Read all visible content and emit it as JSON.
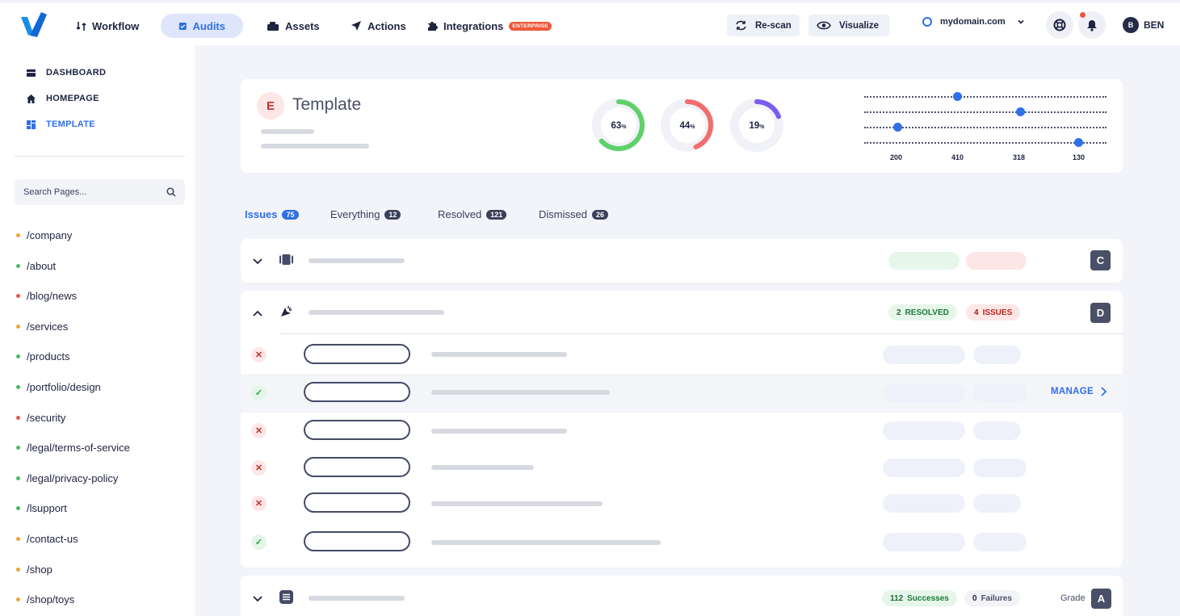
{
  "nav": {
    "items": [
      {
        "label": "Workflow",
        "icon": "workflow-icon"
      },
      {
        "label": "Audits",
        "icon": "audits-icon",
        "active": true
      },
      {
        "label": "Assets",
        "icon": "assets-icon"
      },
      {
        "label": "Actions",
        "icon": "send-icon"
      },
      {
        "label": "Integrations",
        "icon": "puzzle-icon",
        "badge": "ENTERPRISE"
      }
    ],
    "rescan_label": "Re-scan",
    "visualize_label": "Visualize",
    "domain": "mydomain.com",
    "user_initial": "B",
    "user_name": "BEN"
  },
  "sidebar": {
    "links": [
      {
        "label": "DASHBOARD",
        "icon": "dashboard-icon"
      },
      {
        "label": "HOMEPAGE",
        "icon": "home-icon"
      },
      {
        "label": "TEMPLATE",
        "icon": "template-icon",
        "active": true
      }
    ],
    "search_placeholder": "Search Pages...",
    "pages": [
      {
        "path": "/company",
        "status_color": "#f0a431"
      },
      {
        "path": "/about",
        "status_color": "#4cba63"
      },
      {
        "path": "/blog/news",
        "status_color": "#e5574c"
      },
      {
        "path": "/services",
        "status_color": "#f0a431"
      },
      {
        "path": "/products",
        "status_color": "#4cba63"
      },
      {
        "path": "/portfolio/design",
        "status_color": "#4cba63"
      },
      {
        "path": "/security",
        "status_color": "#e5574c"
      },
      {
        "path": "/legal/terms-of-service",
        "status_color": "#4cba63"
      },
      {
        "path": "/legal/privacy-policy",
        "status_color": "#4cba63"
      },
      {
        "path": "/lsupport",
        "status_color": "#4cba63"
      },
      {
        "path": "/contact-us",
        "status_color": "#f0a431"
      },
      {
        "path": "/shop",
        "status_color": "#f0a431"
      },
      {
        "path": "/shop/toys",
        "status_color": "#f0a431"
      }
    ]
  },
  "summary": {
    "grade": "E",
    "title": "Template",
    "gauges": [
      {
        "value": "63",
        "unit": "%",
        "fraction": 0.63,
        "color": "#5ed16a"
      },
      {
        "value": "44",
        "unit": "%",
        "fraction": 0.44,
        "color": "#f26d6d"
      },
      {
        "value": "19",
        "unit": "%",
        "fraction": 0.19,
        "color": "#7a5cf0"
      }
    ],
    "sliders": {
      "tick_labels": [
        "200",
        "410",
        "318",
        "130"
      ]
    }
  },
  "tabs": [
    {
      "label": "Issues",
      "count": "75",
      "active": true
    },
    {
      "label": "Everything",
      "count": "12"
    },
    {
      "label": "Resolved",
      "count": "121"
    },
    {
      "label": "Dismissed",
      "count": "26"
    }
  ],
  "groups": {
    "group1": {
      "grade": "C"
    },
    "group2": {
      "grade": "D",
      "resolved_count": "2",
      "resolved_label": "RESOLVED",
      "issues_count": "4",
      "issues_label": "ISSUES",
      "manage_label": "MANAGE"
    },
    "group3": {
      "successes_count": "112",
      "successes_label": "Successes",
      "failures_count": "0",
      "failures_label": "Failures",
      "grade_label": "Grade",
      "grade": "A"
    }
  }
}
